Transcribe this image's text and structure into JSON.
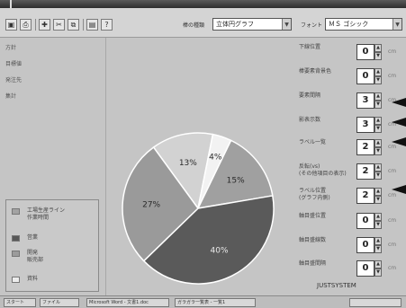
{
  "window": {
    "caption": ""
  },
  "toolbar": {
    "icons": [
      "save-icon",
      "print-icon",
      "tool-icon",
      "cut-icon",
      "copy-icon",
      "paste-icon",
      "help-icon"
    ],
    "chart_type_label": "棒の種類",
    "chart_type_value": "立体円グラフ",
    "font_label": "フォント",
    "font_value": "ＭＳ ゴシック"
  },
  "tree": {
    "items": [
      "方針",
      "目標値",
      "発注先",
      "集計"
    ]
  },
  "legend": {
    "items": [
      {
        "label": "工場生産ライン\n作業時間",
        "color": "#a3a3a3"
      },
      {
        "label": "営業",
        "color": "#585858"
      },
      {
        "label": "開発\n販売部",
        "color": "#9c9c9c"
      },
      {
        "label": "資料",
        "color": "#ececec"
      }
    ]
  },
  "chart_data": {
    "type": "pie",
    "title": "",
    "slices": [
      {
        "label": "13%",
        "value": 13,
        "color": "#d2d2d2"
      },
      {
        "label": "4%",
        "value": 4,
        "color": "#f2f2f2"
      },
      {
        "label": "15%",
        "value": 15,
        "color": "#a0a0a0"
      },
      {
        "label": "40%",
        "value": 40,
        "color": "#5a5a5a"
      },
      {
        "label": "27%",
        "value": 27,
        "color": "#9a9a9a"
      }
    ]
  },
  "settings": {
    "rows": [
      {
        "label": "下線位置",
        "value": "0",
        "unit": "cm"
      },
      {
        "label": "棒要素背景色",
        "value": "0",
        "unit": "cm"
      },
      {
        "label": "要素間隔",
        "value": "3",
        "unit": "cm"
      },
      {
        "label": "影表示数",
        "value": "3",
        "unit": "cm"
      },
      {
        "label": "ラベル一覧",
        "value": "2",
        "unit": "cm"
      },
      {
        "label": "反転(vs)\n(その他項目の表示)",
        "value": "2",
        "unit": "cm"
      },
      {
        "label": "ラベル位置\n(グラフ内側)",
        "value": "2",
        "unit": "cm"
      },
      {
        "label": "軸目盛位置",
        "value": "0",
        "unit": "cm"
      },
      {
        "label": "軸目盛線数",
        "value": "0",
        "unit": "cm"
      },
      {
        "label": "軸目盛間隔",
        "value": "0",
        "unit": "cm"
      }
    ]
  },
  "taskbar": {
    "items": [
      "スタート",
      "ファイル",
      "Microsoft Word - 文書1.doc",
      "ガラガラ一覧表 - 一覧1"
    ],
    "clock": "",
    "brand": "JUSTSYSTEM"
  }
}
